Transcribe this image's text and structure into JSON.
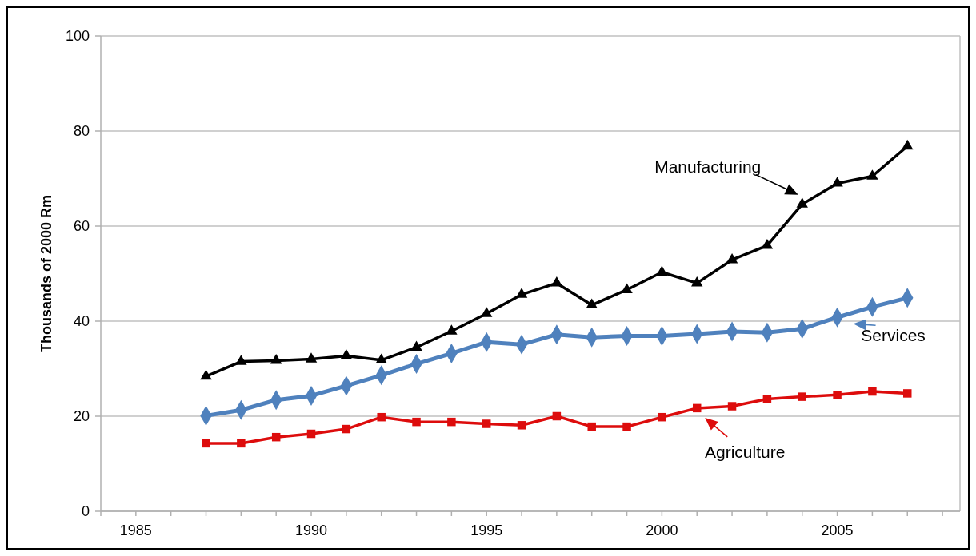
{
  "chart_data": {
    "type": "line",
    "ylabel": "Thousands of 2000 Rm",
    "x": [
      1987,
      1988,
      1989,
      1990,
      1991,
      1992,
      1993,
      1994,
      1995,
      1996,
      1997,
      1998,
      1999,
      2000,
      2001,
      2002,
      2003,
      2004,
      2005,
      2006,
      2007
    ],
    "xlim": [
      1984,
      2008.5
    ],
    "xticks": [
      1985,
      1990,
      1995,
      2000,
      2005
    ],
    "ylim": [
      0,
      100
    ],
    "yticks": [
      0,
      20,
      40,
      60,
      80,
      100
    ],
    "grid": "y",
    "legend": "bottom right",
    "series": [
      {
        "name": "Manufacturing",
        "color": "#000000",
        "marker": "triangle",
        "values": [
          28.4,
          31.5,
          31.7,
          32,
          32.7,
          31.8,
          34.5,
          37.9,
          41.6,
          45.6,
          48,
          43.4,
          46.6,
          50.3,
          48,
          52.9,
          55.9,
          64.6,
          69,
          70.5,
          76.8
        ]
      },
      {
        "name": "Services",
        "color": "#4f81bd",
        "marker": "diamond",
        "values": [
          20.1,
          21.3,
          23.4,
          24.3,
          26.4,
          28.6,
          31,
          33.2,
          35.6,
          35.1,
          37.2,
          36.6,
          36.9,
          36.9,
          37.3,
          37.8,
          37.6,
          38.4,
          40.8,
          43,
          44.9
        ]
      },
      {
        "name": "Agriculture",
        "color": "#dd0c0c",
        "marker": "square",
        "values": [
          14.3,
          14.3,
          15.6,
          16.3,
          17.3,
          19.8,
          18.8,
          18.8,
          18.4,
          18.1,
          20,
          17.8,
          17.8,
          19.8,
          21.7,
          22.1,
          23.6,
          24.1,
          24.5,
          25.2,
          24.8
        ]
      }
    ]
  }
}
